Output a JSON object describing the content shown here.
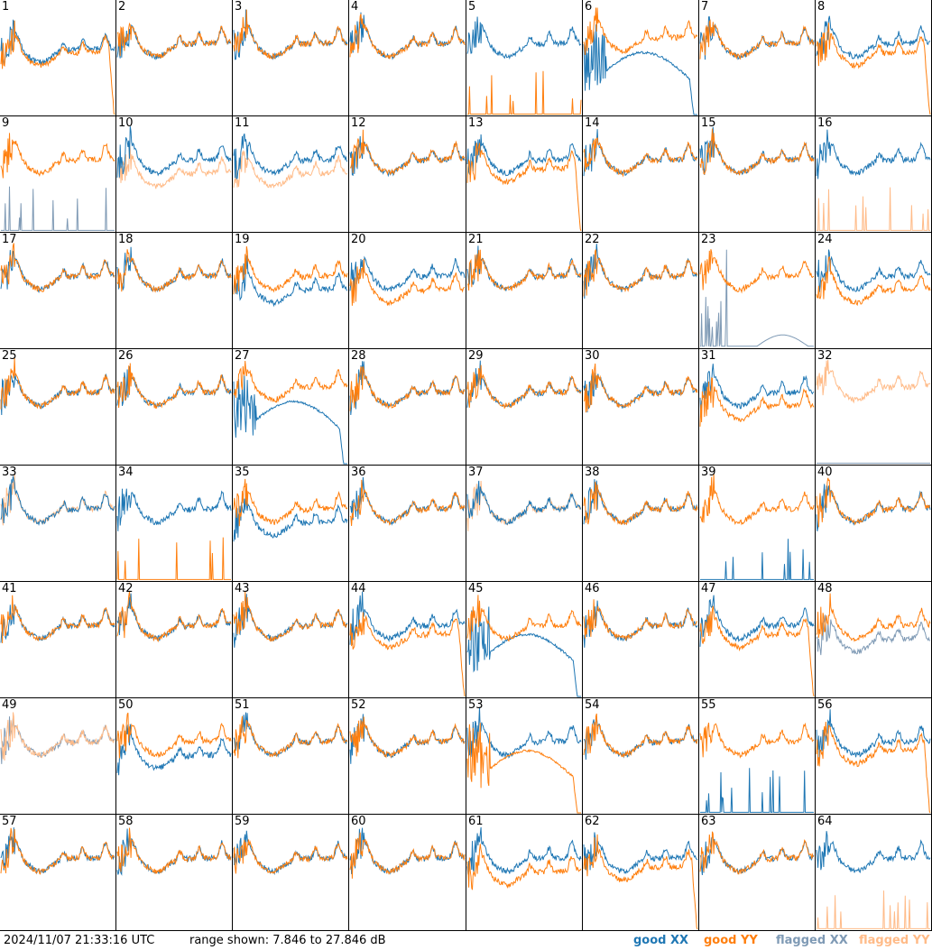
{
  "chart_data": {
    "type": "line",
    "grid": {
      "rows": 8,
      "cols": 8
    },
    "ylim": [
      7.846,
      27.846
    ],
    "yunit": "dB",
    "panel_labels": [
      "1",
      "2",
      "3",
      "4",
      "5",
      "6",
      "7",
      "8",
      "9",
      "10",
      "11",
      "12",
      "13",
      "14",
      "15",
      "16",
      "17",
      "18",
      "19",
      "20",
      "21",
      "22",
      "23",
      "24",
      "25",
      "26",
      "27",
      "28",
      "29",
      "30",
      "31",
      "32",
      "33",
      "34",
      "35",
      "36",
      "37",
      "38",
      "39",
      "40",
      "41",
      "42",
      "43",
      "44",
      "45",
      "46",
      "47",
      "48",
      "49",
      "50",
      "51",
      "52",
      "53",
      "54",
      "55",
      "56",
      "57",
      "58",
      "59",
      "60",
      "61",
      "62",
      "63",
      "64"
    ],
    "series_kinds": [
      "good XX",
      "good YY",
      "flagged XX",
      "flagged YY"
    ],
    "panels": {
      "1": {
        "xx": "normal_low",
        "yy": "rolloff"
      },
      "5": {
        "xx": "normal",
        "yy": "spike_floor"
      },
      "6": {
        "xx": "hump",
        "yy": "high"
      },
      "8": {
        "xx": "normal",
        "yy": "rolloff"
      },
      "9": {
        "xx_flag": "spike_floor",
        "yy": "normal"
      },
      "10": {
        "xx": "normal",
        "yy_flag": "low"
      },
      "11": {
        "xx": "normal",
        "yy_flag": "low"
      },
      "13": {
        "xx": "normal",
        "yy": "rolloff"
      },
      "16": {
        "xx": "normal",
        "yy_flag": "spike_floor"
      },
      "19": {
        "xx": "low",
        "yy": "normal"
      },
      "20": {
        "xx": "normal",
        "yy": "low"
      },
      "23": {
        "xx_flag": "hump_floor",
        "yy": "normal"
      },
      "24": {
        "xx": "normal",
        "yy": "low"
      },
      "27": {
        "xx": "hump",
        "yy": "high"
      },
      "31": {
        "xx": "normal",
        "yy": "low"
      },
      "32": {
        "yy_flag": "high",
        "xx_flag": "floor"
      },
      "33": {
        "xx": "normal",
        "yy_flag": "normal"
      },
      "34": {
        "xx": "normal",
        "yy": "spike_floor"
      },
      "35": {
        "xx": "low",
        "yy": "normal"
      },
      "37": {
        "xx": "normal",
        "yy_flag": "normal"
      },
      "39": {
        "xx": "spike_floor",
        "yy": "normal"
      },
      "44": {
        "xx": "normal",
        "yy": "rolloff"
      },
      "45": {
        "xx": "hump",
        "yy": "normal"
      },
      "47": {
        "xx": "normal",
        "yy": "rolloff"
      },
      "48": {
        "xx_flag": "low",
        "yy": "normal"
      },
      "49": {
        "xx_flag": "normal",
        "yy_flag": "normal"
      },
      "50": {
        "xx": "low",
        "yy": "normal"
      },
      "53": {
        "xx": "normal",
        "yy": "hump"
      },
      "55": {
        "xx": "spike_floor",
        "yy": "normal"
      },
      "56": {
        "xx": "normal",
        "yy": "rolloff"
      },
      "61": {
        "xx": "normal",
        "yy": "low"
      },
      "62": {
        "xx": "normal",
        "yy": "rolloff"
      },
      "64": {
        "xx": "normal",
        "yy_flag": "spike_floor"
      }
    },
    "colors": {
      "good_xx": "#1f77b4",
      "good_yy": "#ff7f0e",
      "flagged_xx": "#7f9ab5",
      "flagged_yy": "#ffbb88"
    }
  },
  "footer": {
    "timestamp": "2024/11/07 21:33:16 UTC",
    "range_text": "range shown: 7.846 to 27.846 dB",
    "legend": {
      "good": "good",
      "flagged": "flagged",
      "xx": "XX",
      "yy": "YY"
    }
  }
}
